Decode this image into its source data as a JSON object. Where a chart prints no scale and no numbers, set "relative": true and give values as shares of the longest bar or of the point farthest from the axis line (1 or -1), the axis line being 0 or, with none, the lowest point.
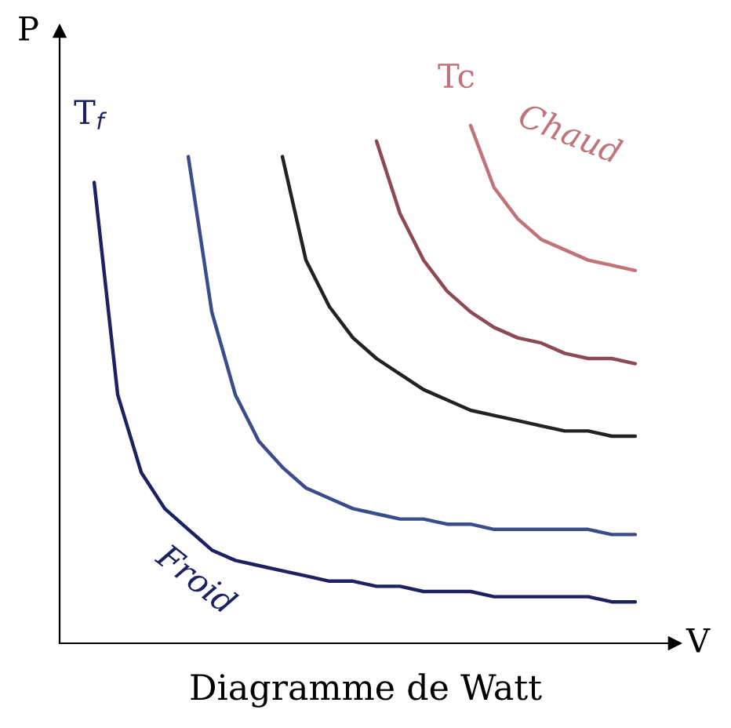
{
  "chart_data": {
    "type": "line",
    "relative": true,
    "xlabel": "V",
    "ylabel": "P",
    "legend": false,
    "marker": "none",
    "line_style": "solid",
    "annotations": [
      "T$_{f}$",
      "Tc",
      "Diagramme de Watt"
    ],
    "categories": [
      null,
      null,
      null,
      null,
      null,
      null,
      null,
      null,
      null,
      null,
      null,
      null,
      null,
      null,
      null,
      null,
      null,
      null,
      null,
      null,
      null,
      null,
      null,
      null
    ],
    "series": [
      {
        "name": "Froid",
        "color": "#1c2160",
        "values": [
          0.89,
          0.48,
          0.33,
          0.26,
          0.22,
          0.18,
          0.16,
          0.15,
          0.14,
          0.13,
          0.12,
          0.12,
          0.11,
          0.11,
          0.1,
          0.1,
          0.1,
          0.09,
          0.09,
          0.09,
          0.09,
          0.09,
          0.08,
          0.08
        ]
      },
      {
        "color": "#3a4d8a",
        "values": [
          null,
          null,
          null,
          null,
          0.94,
          0.64,
          0.48,
          0.39,
          0.34,
          0.3,
          0.28,
          0.26,
          0.25,
          0.24,
          0.24,
          0.23,
          0.23,
          0.22,
          0.22,
          0.22,
          0.22,
          0.22,
          0.21,
          0.21
        ]
      },
      {
        "color": "#222222",
        "values": [
          null,
          null,
          null,
          null,
          null,
          null,
          null,
          null,
          0.94,
          0.74,
          0.65,
          0.59,
          0.55,
          0.52,
          0.49,
          0.47,
          0.45,
          0.44,
          0.43,
          0.42,
          0.41,
          0.41,
          0.4,
          0.4
        ]
      },
      {
        "color": "#8b4a55",
        "values": [
          null,
          null,
          null,
          null,
          null,
          null,
          null,
          null,
          null,
          null,
          null,
          null,
          0.97,
          0.83,
          0.74,
          0.68,
          0.64,
          0.61,
          0.59,
          0.58,
          0.56,
          0.55,
          0.55,
          0.54
        ]
      },
      {
        "name": "Chaud",
        "color": "#c0747a",
        "values": [
          null,
          null,
          null,
          null,
          null,
          null,
          null,
          null,
          null,
          null,
          null,
          null,
          null,
          null,
          null,
          null,
          1.0,
          0.88,
          0.82,
          0.78,
          0.76,
          0.74,
          0.73,
          0.72
        ]
      }
    ]
  }
}
